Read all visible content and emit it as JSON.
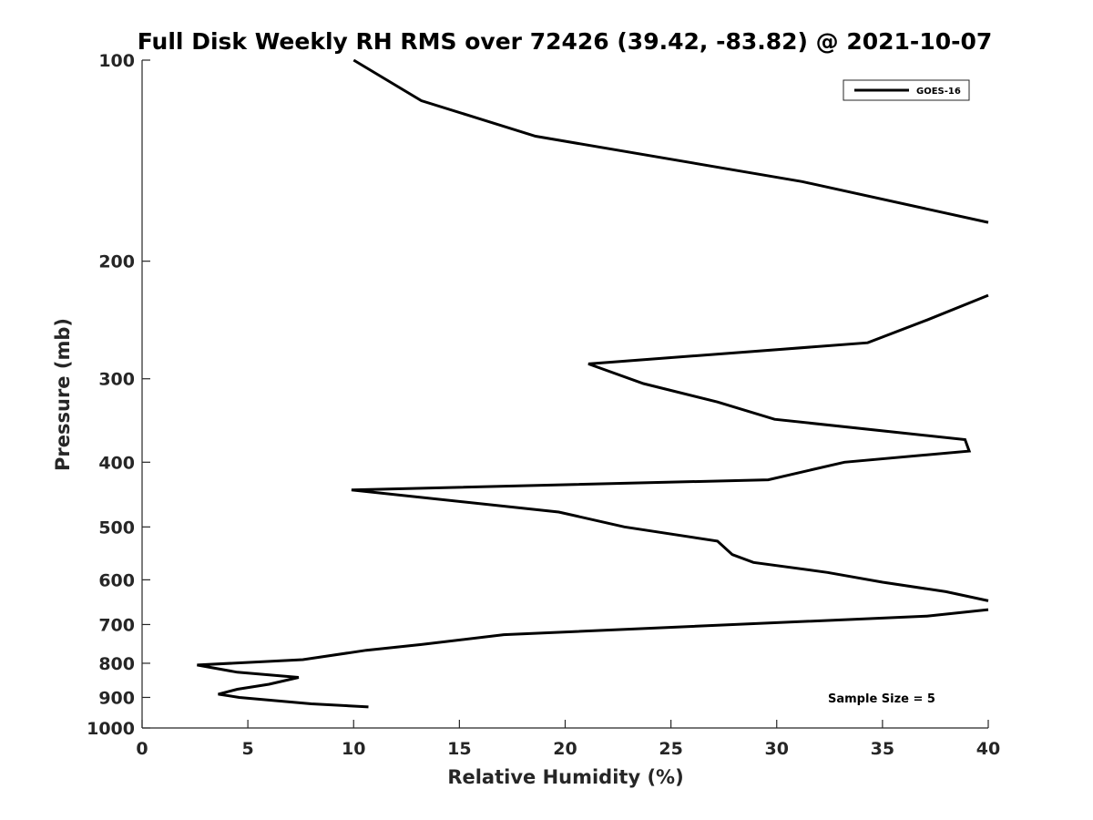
{
  "chart_data": {
    "type": "line",
    "title": "Full Disk Weekly RH RMS over 72426 (39.42, -83.82) @ 2021-10-07",
    "xlabel": "Relative Humidity (%)",
    "ylabel": "Pressure (mb)",
    "xlim": [
      0,
      40
    ],
    "ylim": [
      1000,
      100
    ],
    "yscale": "log",
    "y_reversed": true,
    "x_ticks": [
      0,
      5,
      10,
      15,
      20,
      25,
      30,
      35,
      40
    ],
    "y_ticks": [
      100,
      200,
      300,
      400,
      500,
      600,
      700,
      800,
      900,
      1000
    ],
    "grid": false,
    "legend_position": "top-right",
    "series": [
      {
        "name": "GOES-16",
        "color": "#000000",
        "points": [
          [
            10.0,
            100
          ],
          [
            13.2,
            115
          ],
          [
            18.6,
            130
          ],
          [
            31.2,
            152
          ],
          [
            40.0,
            175
          ],
          [
            null,
            null
          ],
          [
            40.0,
            225
          ],
          [
            37.1,
            245
          ],
          [
            34.3,
            265
          ],
          [
            21.1,
            285
          ],
          [
            23.7,
            305
          ],
          [
            27.2,
            325
          ],
          [
            29.9,
            345
          ],
          [
            38.9,
            370
          ],
          [
            39.1,
            385
          ],
          [
            33.2,
            400
          ],
          [
            29.6,
            425
          ],
          [
            9.9,
            440
          ],
          [
            19.7,
            475
          ],
          [
            22.8,
            500
          ],
          [
            27.2,
            525
          ],
          [
            27.9,
            550
          ],
          [
            28.9,
            565
          ],
          [
            32.4,
            585
          ],
          [
            35.0,
            605
          ],
          [
            38.0,
            625
          ],
          [
            40.0,
            645
          ],
          [
            null,
            null
          ],
          [
            40.0,
            665
          ],
          [
            37.1,
            680
          ],
          [
            17.1,
            725
          ],
          [
            13.2,
            750
          ],
          [
            10.6,
            765
          ],
          [
            7.6,
            790
          ],
          [
            2.6,
            805
          ],
          [
            4.5,
            825
          ],
          [
            7.4,
            840
          ],
          [
            6.0,
            860
          ],
          [
            4.5,
            875
          ],
          [
            3.6,
            890
          ],
          [
            4.6,
            900
          ],
          [
            8.0,
            920
          ],
          [
            10.7,
            930
          ]
        ]
      }
    ],
    "annotations": [
      "Sample Size = 5"
    ]
  }
}
